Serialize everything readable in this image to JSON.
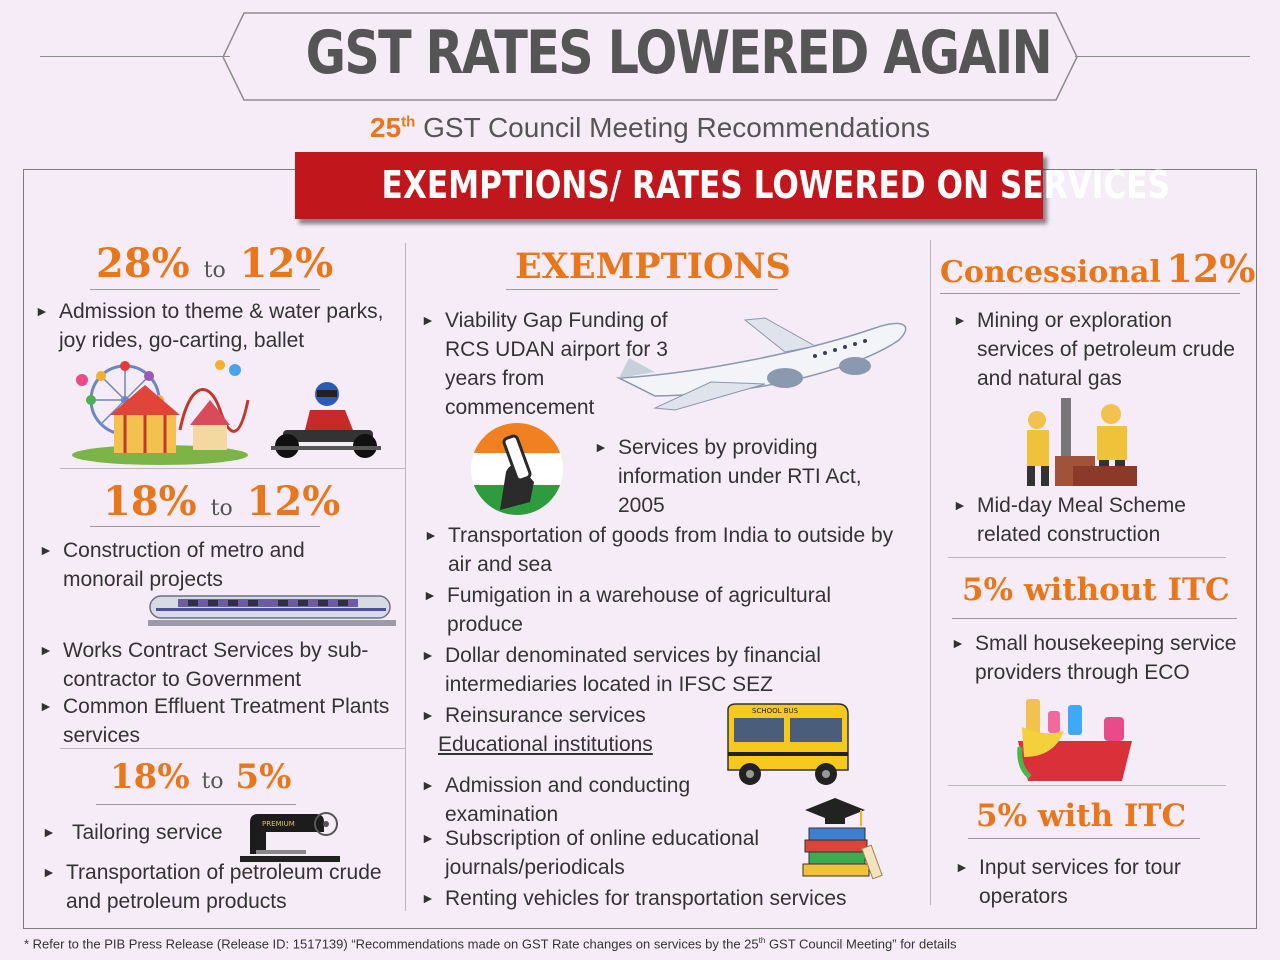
{
  "header": {
    "title": "GST RATES LOWERED AGAIN",
    "subtitle_num": "25",
    "subtitle_sup": "th",
    "subtitle_text": "GST Council Meeting Recommendations",
    "banner": "EXEMPTIONS/ RATES LOWERED ON SERVICES"
  },
  "left": {
    "sec1": {
      "from": "28%",
      "to_word": "to",
      "to": "12%",
      "items": [
        "Admission to theme & water parks, joy rides, go-carting, ballet"
      ]
    },
    "sec2": {
      "from": "18%",
      "to_word": "to",
      "to": "12%",
      "items": [
        "Construction of metro and monorail projects",
        "Works Contract Services by sub-contractor to Government",
        "Common Effluent Treatment Plants services"
      ]
    },
    "sec3": {
      "from": "18%",
      "to_word": "to",
      "to": "5%",
      "items": [
        "Tailoring service",
        "Transportation of petroleum crude and petroleum products"
      ]
    },
    "machine_label": "PREMIUM"
  },
  "middle": {
    "heading": "EXEMPTIONS",
    "items": [
      "Viability Gap Funding of RCS UDAN airport for 3 years from commencement",
      "Services by providing information under RTI Act, 2005",
      "Transportation of goods from India to outside by air and sea",
      "Fumigation in a warehouse of agricultural produce",
      "Dollar denominated services by financial intermediaries located in IFSC SEZ",
      "Reinsurance services"
    ],
    "edu_label": "Educational institutions",
    "edu_items": [
      "Admission and conducting examination",
      "Subscription of online educational journals/periodicals",
      "Renting vehicles for transportation services"
    ],
    "bus_label": "SCHOOL BUS"
  },
  "right": {
    "sec1": {
      "label": "Concessional",
      "rate": "12%",
      "items": [
        "Mining or exploration services of petroleum crude and natural gas",
        "Mid-day Meal Scheme related construction"
      ]
    },
    "sec2": {
      "heading": "5% without ITC",
      "items": [
        "Small housekeeping service providers through ECO"
      ]
    },
    "sec3": {
      "heading": "5% with ITC",
      "items": [
        "Input services for tour operators"
      ]
    }
  },
  "footnote": {
    "pre": "* Refer to the PIB Press Release (Release ID: 1517139) “Recommendations made on GST Rate changes on services by the 25",
    "sup": "th",
    "post": " GST Council Meeting” for details"
  },
  "colors": {
    "accent": "#e8761a",
    "banner": "#c0161c",
    "background": "#f6ecf7"
  }
}
